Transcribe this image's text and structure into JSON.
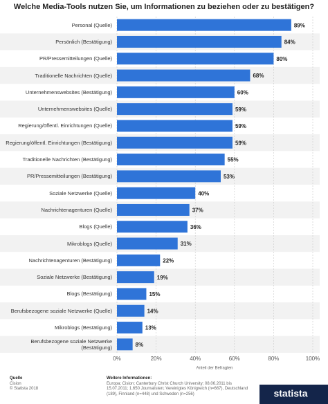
{
  "chart_data": {
    "type": "barh",
    "title": "Welche Media-Tools nutzen Sie, um Informationen zu beziehen oder zu bestätigen?",
    "categories": [
      "Personal (Quelle)",
      "Persönlich (Bestätigung)",
      "PR/Pressemitteilungen (Quelle)",
      "Traditionelle Nachrichten (Quelle)",
      "Unternehmenswebsites (Bestätigung)",
      "Unternehmenswebsites (Quelle)",
      "Regierung/öffentl. Einrichtungen (Quelle)",
      "Regierung/öffentl. Einrichtungen (Bestätigung)",
      "Traditionelle Nachrichten (Bestätigung)",
      "PR/Pressemitteilungen (Bestätigung)",
      "Soziale Netzwerke (Quelle)",
      "Nachrichtenagenturen (Quelle)",
      "Blogs (Quelle)",
      "Mikroblogs (Quelle)",
      "Nachrichtenagenturen (Bestätigung)",
      "Soziale Netzwerke (Bestätigung)",
      "Blogs (Bestätigung)",
      "Berufsbezogene soziale Netzwerke (Quelle)",
      "Mikroblogs (Bestätigung)",
      "Berufsbezogene soziale Netzwerke (Bestätigung)"
    ],
    "values": [
      89,
      84,
      80,
      68,
      60,
      59,
      59,
      59,
      55,
      53,
      40,
      37,
      36,
      31,
      22,
      19,
      15,
      14,
      13,
      8
    ],
    "value_labels": [
      "89%",
      "84%",
      "80%",
      "68%",
      "60%",
      "59%",
      "59%",
      "59%",
      "55%",
      "53%",
      "40%",
      "37%",
      "36%",
      "31%",
      "22%",
      "19%",
      "15%",
      "14%",
      "13%",
      "8%"
    ],
    "color": "#2f74d8",
    "xlim": [
      0,
      100
    ],
    "xticks": [
      {
        "value": 0,
        "label": "0%"
      },
      {
        "value": 20,
        "label": "20%"
      },
      {
        "value": 40,
        "label": "40%"
      },
      {
        "value": 60,
        "label": "60%"
      },
      {
        "value": 80,
        "label": "80%"
      },
      {
        "value": 100,
        "label": "100%"
      }
    ],
    "xlabel": "Anteil der Befragten",
    "grid": true
  },
  "footer": {
    "source_title": "Quelle",
    "source": "Cision",
    "copyright": "© Statista 2018",
    "info_title": "Weitere Informationen:",
    "info": "Europa; Cision; Canterbury Christ Church University; 08.06.2011 bis 15.07.2011; 1.650 Journalisten; Vereinigtes Königreich (n=667), Deutschland (189), Finnland (n=448) und Schweden (n=256)",
    "logo": "statista"
  }
}
